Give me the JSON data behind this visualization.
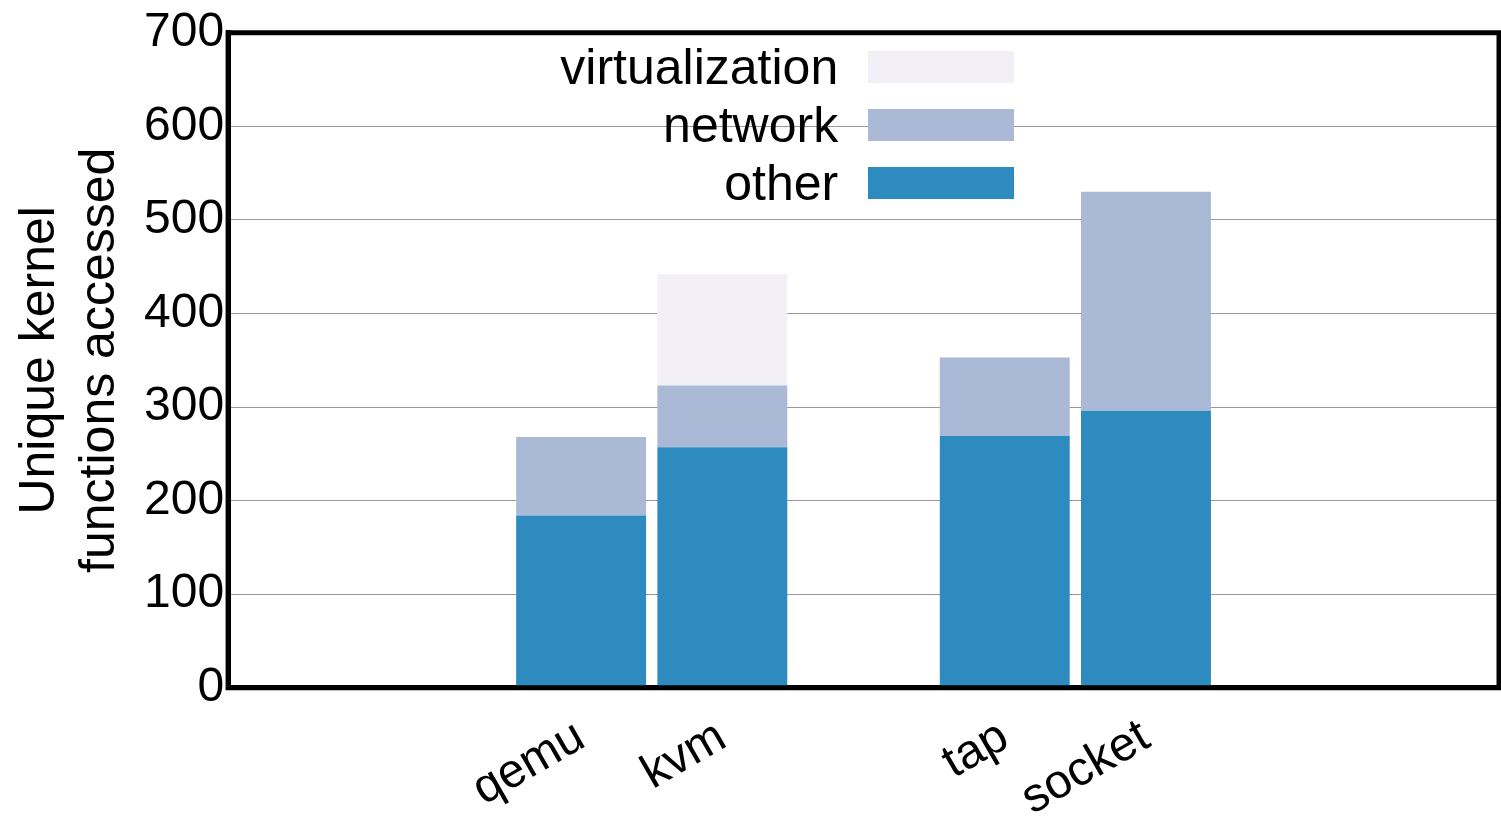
{
  "chart_data": {
    "type": "bar",
    "stacked": true,
    "ylabel": "Unique kernel\nfunctions accessed",
    "categories": [
      null,
      null,
      "qemu",
      "kvm",
      null,
      "tap",
      "socket",
      null,
      null
    ],
    "series": [
      {
        "name": "other",
        "color": "#2e8bbf",
        "values": [
          null,
          null,
          184,
          257,
          null,
          269,
          296,
          null,
          null
        ]
      },
      {
        "name": "network",
        "color": "#a9b9d6",
        "values": [
          null,
          null,
          84,
          66,
          null,
          84,
          234,
          null,
          null
        ]
      },
      {
        "name": "virtualization",
        "color": "#f2eff6",
        "values": [
          null,
          null,
          null,
          119,
          null,
          null,
          null,
          null,
          null
        ]
      }
    ],
    "ylim": [
      0,
      700
    ],
    "yticks": [
      0,
      100,
      200,
      300,
      400,
      500,
      600,
      700
    ],
    "grid": "y",
    "legend": "top"
  }
}
